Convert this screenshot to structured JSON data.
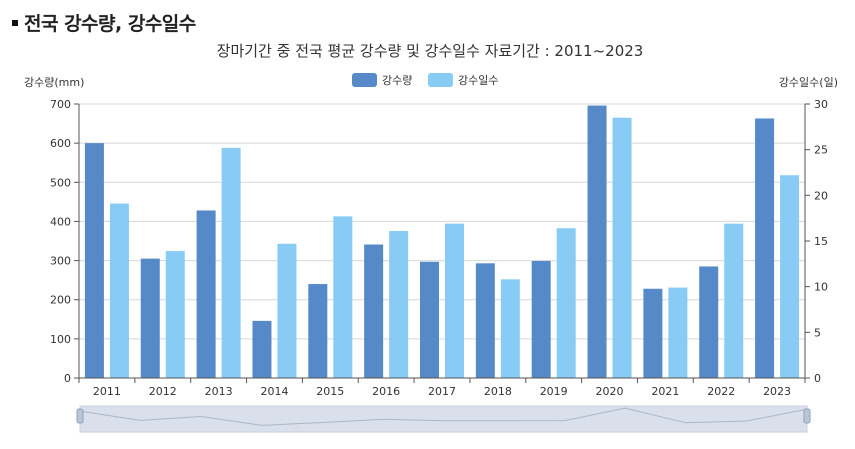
{
  "heading": "전국 강수량, 강수일수",
  "chart_data": {
    "type": "bar",
    "title": "장마기간 중 전국 평균 강수량 및 강수일수 자료기간 : 2011~2023",
    "categories": [
      "2011",
      "2012",
      "2013",
      "2014",
      "2015",
      "2016",
      "2017",
      "2018",
      "2019",
      "2020",
      "2021",
      "2022",
      "2023"
    ],
    "ylabel_left": "강수량(mm)",
    "ylabel_right": "강수일수(일)",
    "ylim_left": [
      0,
      700
    ],
    "ylim_right": [
      0,
      30
    ],
    "yticks_left": [
      "0",
      "100",
      "200",
      "300",
      "400",
      "500",
      "600",
      "700"
    ],
    "yticks_right": [
      "0",
      "5",
      "10",
      "15",
      "20",
      "25",
      "30"
    ],
    "grid": true,
    "legend_position": "top-center",
    "series": [
      {
        "name": "강수량",
        "axis": "left",
        "color": "#5589c8",
        "values": [
          600,
          305,
          428,
          146,
          240,
          341,
          297,
          293,
          299,
          696,
          228,
          285,
          663
        ]
      },
      {
        "name": "강수일수",
        "axis": "right",
        "color": "#88ccf5",
        "values": [
          19.1,
          13.9,
          25.2,
          14.7,
          17.7,
          16.1,
          16.9,
          10.8,
          16.4,
          28.5,
          9.9,
          16.9,
          22.2
        ]
      }
    ]
  }
}
